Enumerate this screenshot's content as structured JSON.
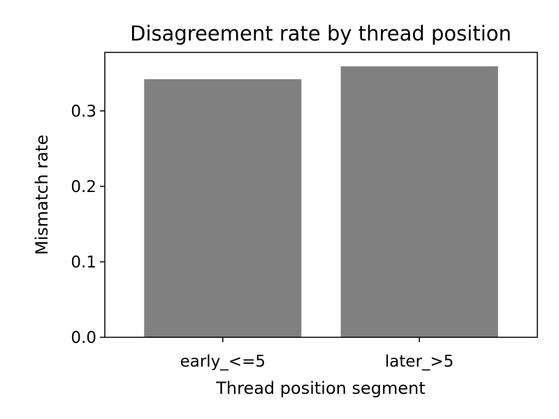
{
  "chart_data": {
    "type": "bar",
    "title": "Disagreement rate by thread position",
    "xlabel": "Thread position segment",
    "ylabel": "Mismatch rate",
    "categories": [
      "early_<=5",
      "later_>5"
    ],
    "values": [
      0.342,
      0.359
    ],
    "ylim": [
      0,
      0.3775
    ],
    "yticks": [
      0.0,
      0.1,
      0.2,
      0.3
    ],
    "ytick_labels": [
      "0.0",
      "0.1",
      "0.2",
      "0.3"
    ],
    "bar_color": "#808080",
    "grid": false,
    "legend": "none"
  }
}
